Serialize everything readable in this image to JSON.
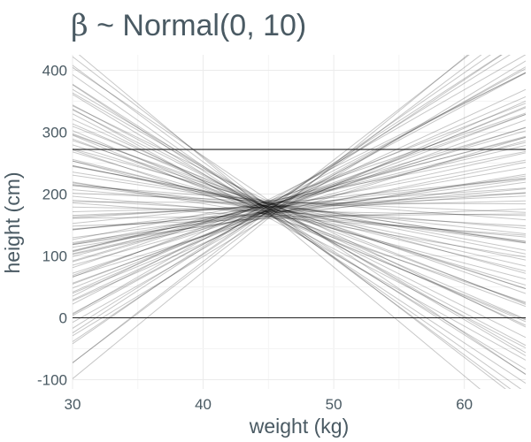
{
  "chart_data": {
    "type": "line",
    "title": "β ~ Normal(0, 10)",
    "title_parts": {
      "symbol": "β",
      "rest": " ~ Normal(0, 10)"
    },
    "xlabel": "weight (kg)",
    "ylabel": "height (cm)",
    "xlim": [
      30,
      64.7
    ],
    "ylim": [
      -115,
      425
    ],
    "x_ticks": [
      30,
      40,
      50,
      60
    ],
    "y_ticks": [
      -100,
      0,
      100,
      200,
      300,
      400
    ],
    "x_tick_labels": [
      "30",
      "40",
      "50",
      "60"
    ],
    "y_tick_labels": [
      "-100",
      "0",
      "100",
      "200",
      "300",
      "400"
    ],
    "grid": true,
    "reference_lines": [
      {
        "y": 0
      },
      {
        "y": 272
      }
    ],
    "x_center": 45,
    "prior_lines": [
      [
        178,
        -5.2
      ],
      [
        172,
        5.8
      ],
      [
        183,
        -12.4
      ],
      [
        165,
        3.4
      ],
      [
        190,
        -1.6
      ],
      [
        175,
        11.2
      ],
      [
        169,
        -8.9
      ],
      [
        181,
        7.5
      ],
      [
        160,
        0.8
      ],
      [
        186,
        -3.9
      ],
      [
        177,
        14.6
      ],
      [
        171,
        -14.8
      ],
      [
        184,
        2.1
      ],
      [
        167,
        9.3
      ],
      [
        179,
        -6.7
      ],
      [
        174,
        4.7
      ],
      [
        188,
        -10.3
      ],
      [
        163,
        12.8
      ],
      [
        176,
        -2.8
      ],
      [
        182,
        1.4
      ],
      [
        170,
        -17.6
      ],
      [
        185,
        6.2
      ],
      [
        173,
        -0.4
      ],
      [
        166,
        15.9
      ],
      [
        180,
        -4.4
      ],
      [
        187,
        8.1
      ],
      [
        162,
        -11.7
      ],
      [
        178,
        3.9
      ],
      [
        172,
        -7.8
      ],
      [
        191,
        10.4
      ],
      [
        168,
        -1.9
      ],
      [
        183,
        5.1
      ],
      [
        175,
        -13.5
      ],
      [
        164,
        0.2
      ],
      [
        181,
        13.2
      ],
      [
        177,
        -9.6
      ],
      [
        170,
        2.7
      ],
      [
        186,
        -5.8
      ],
      [
        173,
        7.9
      ],
      [
        179,
        -16.2
      ],
      [
        167,
        4.3
      ],
      [
        184,
        -3.1
      ],
      [
        171,
        11.9
      ],
      [
        188,
        -0.9
      ],
      [
        165,
        -7.1
      ],
      [
        176,
        9.8
      ],
      [
        182,
        -12.1
      ],
      [
        169,
        1.7
      ],
      [
        174,
        6.8
      ],
      [
        180,
        -4.9
      ],
      [
        161,
        17.3
      ],
      [
        185,
        -8.3
      ],
      [
        178,
        2.4
      ],
      [
        172,
        -1.2
      ],
      [
        187,
        12.1
      ],
      [
        166,
        -10.9
      ],
      [
        183,
        5.6
      ],
      [
        175,
        -6.2
      ],
      [
        179,
        0.5
      ],
      [
        170,
        8.7
      ],
      [
        190,
        -14.3
      ],
      [
        168,
        3.1
      ],
      [
        181,
        -2.3
      ],
      [
        173,
        14.1
      ],
      [
        177,
        -9.1
      ],
      [
        164,
        6.5
      ],
      [
        186,
        -0.1
      ],
      [
        171,
        -5.5
      ],
      [
        184,
        10.8
      ],
      [
        176,
        -11.2
      ],
      [
        180,
        1.1
      ],
      [
        167,
        -3.5
      ],
      [
        189,
        7.2
      ],
      [
        174,
        -15.6
      ],
      [
        182,
        4.9
      ],
      [
        163,
        -1.5
      ],
      [
        178,
        9.1
      ],
      [
        185,
        -7.4
      ],
      [
        172,
        3.6
      ],
      [
        169,
        -12.8
      ],
      [
        181,
        13.7
      ],
      [
        175,
        -2.6
      ],
      [
        187,
        5.3
      ],
      [
        166,
        -8.6
      ],
      [
        179,
        0.9
      ],
      [
        173,
        16.4
      ],
      [
        184,
        -4.1
      ],
      [
        170,
        7.6
      ],
      [
        177,
        -10.6
      ],
      [
        162,
        2.9
      ],
      [
        183,
        -6.9
      ],
      [
        176,
        11.5
      ],
      [
        180,
        -1.8
      ],
      [
        188,
        4.1
      ],
      [
        168,
        -13.9
      ],
      [
        174,
        8.4
      ],
      [
        186,
        -3.3
      ],
      [
        171,
        1.9
      ],
      [
        179,
        -7.9
      ],
      [
        182,
        6.1
      ]
    ]
  }
}
